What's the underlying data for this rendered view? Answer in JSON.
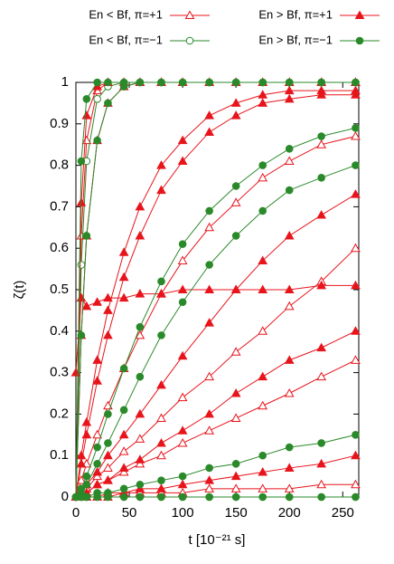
{
  "chart_data": {
    "type": "line",
    "xlabel": "t [10⁻²¹ s]",
    "ylabel": "ζ(t)",
    "xlim": [
      0,
      265
    ],
    "ylim": [
      0,
      1
    ],
    "xticks": [
      0,
      50,
      100,
      150,
      200,
      250
    ],
    "yticks": [
      0,
      0.1,
      0.2,
      0.3,
      0.4,
      0.5,
      0.6,
      0.7,
      0.8,
      0.9,
      1
    ],
    "x": [
      0,
      5,
      10,
      20,
      30,
      45,
      60,
      80,
      100,
      125,
      150,
      175,
      200,
      230,
      262
    ],
    "series": [
      {
        "name": "En < Bf, π=+1",
        "color": "#e8141c",
        "marker": "triangle",
        "filled": false,
        "curves": [
          [
            0,
            0.63,
            0.86,
            0.98,
            1,
            1,
            1,
            1,
            1,
            1,
            1,
            1,
            1,
            1,
            1
          ],
          [
            0,
            0.04,
            0.08,
            0.15,
            0.22,
            0.31,
            0.39,
            0.49,
            0.57,
            0.65,
            0.71,
            0.77,
            0.81,
            0.85,
            0.87
          ],
          [
            0,
            0.01,
            0.02,
            0.05,
            0.07,
            0.11,
            0.14,
            0.19,
            0.24,
            0.29,
            0.35,
            0.4,
            0.46,
            0.52,
            0.6
          ],
          [
            0,
            0.01,
            0.01,
            0.03,
            0.04,
            0.06,
            0.08,
            0.1,
            0.13,
            0.16,
            0.19,
            0.22,
            0.25,
            0.29,
            0.33
          ],
          [
            0,
            0,
            0,
            0,
            0,
            0.01,
            0.01,
            0.01,
            0.01,
            0.02,
            0.02,
            0.02,
            0.02,
            0.03,
            0.03
          ]
        ]
      },
      {
        "name": "En < Bf, π=−1",
        "color": "#2a8a2a",
        "marker": "circle",
        "filled": false,
        "curves": [
          [
            0,
            0.56,
            0.81,
            0.96,
            0.99,
            1,
            1,
            1,
            1,
            1,
            1,
            1,
            1,
            1,
            1
          ],
          [
            0,
            0,
            0,
            0,
            0,
            0,
            0,
            0,
            0,
            0,
            0,
            0,
            0,
            0,
            0
          ]
        ]
      },
      {
        "name": "En > Bf, π=+1",
        "color": "#e8141c",
        "marker": "triangle",
        "filled": true,
        "curves": [
          [
            0,
            0.71,
            0.92,
            0.99,
            1,
            1,
            1,
            1,
            1,
            1,
            1,
            1,
            1,
            1,
            1
          ],
          [
            0,
            0.39,
            0.63,
            0.86,
            0.95,
            0.99,
            1,
            1,
            1,
            1,
            1,
            1,
            1,
            1,
            1
          ],
          [
            0,
            0.1,
            0.18,
            0.33,
            0.45,
            0.59,
            0.7,
            0.8,
            0.86,
            0.92,
            0.95,
            0.97,
            0.98,
            0.98,
            0.98
          ],
          [
            0,
            0.08,
            0.15,
            0.28,
            0.39,
            0.53,
            0.63,
            0.74,
            0.81,
            0.88,
            0.92,
            0.95,
            0.96,
            0.97,
            0.97
          ],
          [
            0.3,
            0.48,
            0.46,
            0.47,
            0.48,
            0.48,
            0.49,
            0.49,
            0.5,
            0.5,
            0.5,
            0.5,
            0.5,
            0.51,
            0.51
          ],
          [
            0,
            0.01,
            0.03,
            0.06,
            0.1,
            0.15,
            0.2,
            0.27,
            0.34,
            0.42,
            0.5,
            0.57,
            0.63,
            0.68,
            0.73
          ],
          [
            0,
            0.01,
            0.01,
            0.03,
            0.04,
            0.07,
            0.09,
            0.13,
            0.16,
            0.2,
            0.25,
            0.29,
            0.33,
            0.36,
            0.4
          ],
          [
            0,
            0,
            0,
            0,
            0.01,
            0.01,
            0.02,
            0.02,
            0.03,
            0.04,
            0.05,
            0.06,
            0.07,
            0.08,
            0.1
          ]
        ]
      },
      {
        "name": "En > Bf, π=−1",
        "color": "#2a8a2a",
        "marker": "circle",
        "filled": true,
        "curves": [
          [
            0,
            0.81,
            0.96,
            1,
            1,
            1,
            1,
            1,
            1,
            1,
            1,
            1,
            1,
            1,
            1
          ],
          [
            0,
            0.39,
            0.63,
            0.86,
            0.95,
            0.99,
            1,
            1,
            1,
            1,
            1,
            1,
            1,
            1,
            1
          ],
          [
            0,
            0.02,
            0.05,
            0.12,
            0.2,
            0.31,
            0.41,
            0.52,
            0.61,
            0.69,
            0.75,
            0.8,
            0.84,
            0.87,
            0.89
          ],
          [
            0,
            0.01,
            0.03,
            0.08,
            0.13,
            0.21,
            0.29,
            0.39,
            0.47,
            0.56,
            0.63,
            0.69,
            0.74,
            0.77,
            0.8
          ],
          [
            0,
            0,
            0,
            0.01,
            0.01,
            0.02,
            0.03,
            0.04,
            0.05,
            0.07,
            0.08,
            0.1,
            0.12,
            0.13,
            0.15
          ],
          [
            0,
            0,
            0,
            0,
            0,
            0,
            0,
            0,
            0,
            0,
            0,
            0,
            0,
            0,
            0
          ]
        ]
      }
    ]
  }
}
